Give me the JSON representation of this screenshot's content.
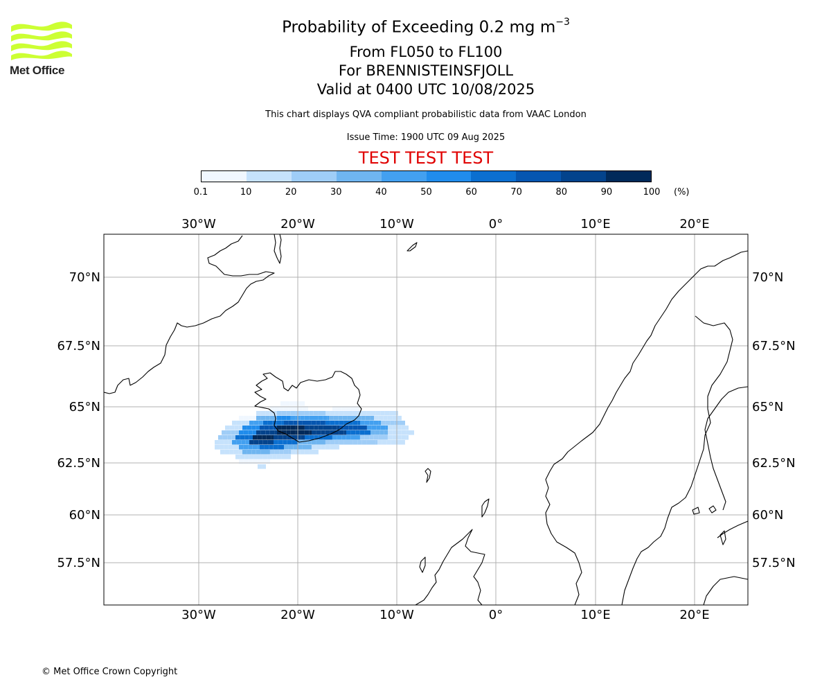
{
  "header": {
    "title_main": "Probability of Exceeding 0.2 mg m",
    "title_exp": "−3",
    "level_range": "From FL050 to FL100",
    "volcano": "For BRENNISTEINSFJOLL",
    "valid_time": "Valid at 0400 UTC 10/08/2025",
    "note": "This chart displays QVA compliant probabilistic data from VAAC London",
    "issue_time": "Issue Time: 1900 UTC 09 Aug 2025",
    "test_banner": "TEST TEST TEST"
  },
  "logo": {
    "text": "Met Office",
    "color": "#ccff33",
    "icon": "met-office-waves-logo"
  },
  "colorbar": {
    "ticks": [
      "0.1",
      "10",
      "20",
      "30",
      "40",
      "50",
      "60",
      "70",
      "80",
      "90",
      "100"
    ],
    "unit": "(%)",
    "colors": [
      "#f0f7ff",
      "#c6e2fc",
      "#9fcdf7",
      "#6fb5f0",
      "#43a0f0",
      "#208cec",
      "#0b6fd0",
      "#0656b0",
      "#03438c",
      "#012a5a"
    ]
  },
  "map": {
    "lon_labels": [
      "30°W",
      "20°W",
      "10°W",
      "0°",
      "10°E",
      "20°E"
    ],
    "lat_labels": [
      "70°N",
      "67.5°N",
      "65°N",
      "62.5°N",
      "60°N",
      "57.5°N"
    ],
    "grid_color": "#b0b0b0",
    "coast_color": "#000000"
  },
  "footer": {
    "copyright": "© Met Office Crown Copyright"
  }
}
